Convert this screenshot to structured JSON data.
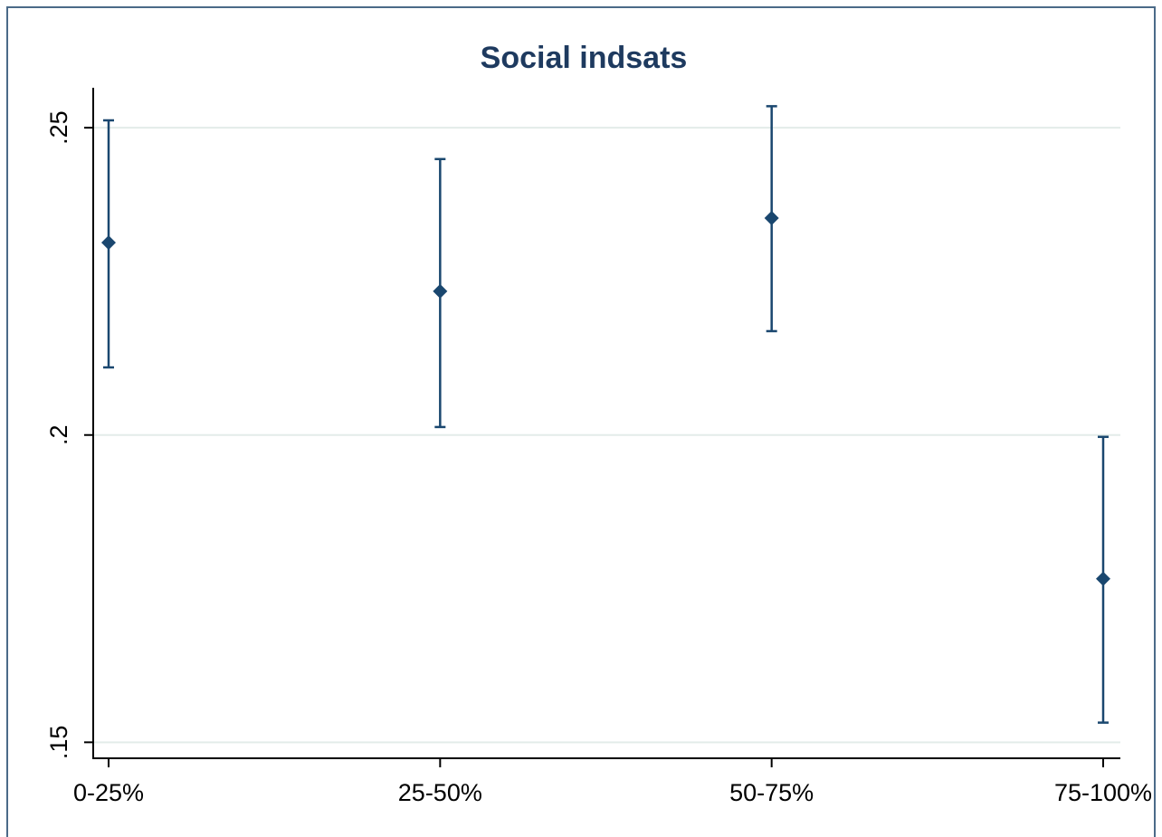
{
  "chart_data": {
    "type": "errorbar",
    "title": "Social indsats",
    "categories": [
      "0-25%",
      "25-50%",
      "50-75%",
      "75-100%"
    ],
    "series": [
      {
        "color": "#1a476f",
        "values": [
          0.2313,
          0.2234,
          0.2353,
          0.1766
        ],
        "lower": [
          0.211,
          0.2013,
          0.2169,
          0.1532
        ],
        "upper": [
          0.2512,
          0.2449,
          0.2535,
          0.1997
        ]
      }
    ],
    "ylim": [
      0.1474,
      0.2565
    ],
    "yticks": [
      {
        "value": 0.15,
        "label": ".15"
      },
      {
        "value": 0.2,
        "label": ".2"
      },
      {
        "value": 0.25,
        "label": ".25"
      }
    ],
    "grid": true
  }
}
